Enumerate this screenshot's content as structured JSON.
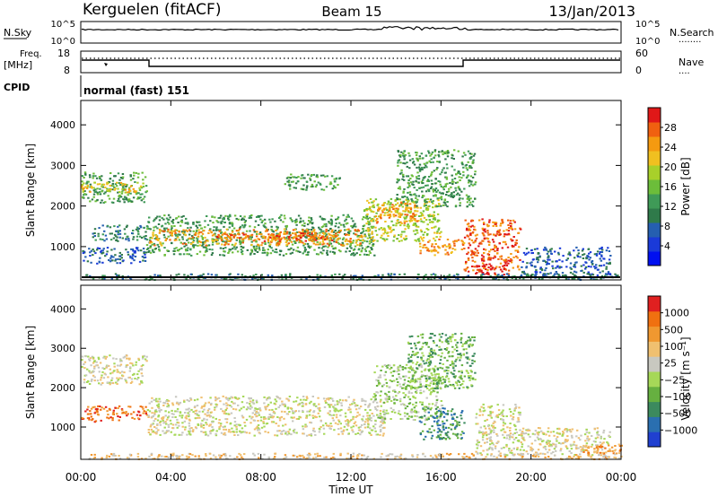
{
  "header": {
    "station": "Kerguelen (fitACF)",
    "beam": "Beam 15",
    "date": "13/Jan/2013"
  },
  "status_panels": {
    "noise": {
      "left_label": "N.Sky",
      "left_ticks": [
        "10^5",
        "10^0"
      ],
      "right_ticks": [
        "10^5",
        "10^0"
      ],
      "right_label": "N.Search",
      "right_dots": "........"
    },
    "freq": {
      "left_label_1": "Freq.",
      "left_label_2": "[MHz]",
      "left_ticks": [
        "18",
        "8"
      ],
      "right_ticks": [
        "60",
        "0"
      ],
      "right_label": "Nave",
      "right_dots": "...."
    },
    "cpid": {
      "label": "CPID",
      "mode": "normal (fast) 151"
    }
  },
  "chart_data": [
    {
      "type": "heatmap",
      "name": "power",
      "ylabel": "Slant Range [km]",
      "ylim": [
        180,
        4600
      ],
      "yticks": [
        "4000",
        "3000",
        "2000",
        "1000"
      ],
      "xlim": [
        0,
        24
      ],
      "colorbar": {
        "label": "Power [dB]",
        "ticks": [
          "28",
          "24",
          "20",
          "16",
          "12",
          "8",
          "4"
        ],
        "colors": [
          "#0010f0",
          "#1a3ad8",
          "#255fb0",
          "#2f7a4a",
          "#3f9a57",
          "#6cbd3a",
          "#a8d02a",
          "#f0c020",
          "#f59a10",
          "#f06010",
          "#e01818"
        ]
      },
      "regions": [
        {
          "t0": 0.0,
          "t1": 2.9,
          "r0": 2100,
          "r1": 2850,
          "level": 4
        },
        {
          "t0": 0.0,
          "t1": 2.9,
          "r0": 2350,
          "r1": 2600,
          "level": 7
        },
        {
          "t0": 0.5,
          "t1": 2.9,
          "r0": 1150,
          "r1": 1550,
          "level": 3
        },
        {
          "t0": 2.9,
          "t1": 13.0,
          "r0": 800,
          "r1": 1800,
          "level": 4
        },
        {
          "t0": 3.0,
          "t1": 12.5,
          "r0": 1050,
          "r1": 1450,
          "level": 8
        },
        {
          "t0": 6.0,
          "t1": 11.5,
          "r0": 1150,
          "r1": 1350,
          "level": 9
        },
        {
          "t0": 12.5,
          "t1": 16.0,
          "r0": 1150,
          "r1": 2200,
          "level": 6
        },
        {
          "t0": 13.0,
          "t1": 15.0,
          "r0": 1600,
          "r1": 2100,
          "level": 8
        },
        {
          "t0": 15.0,
          "t1": 17.0,
          "r0": 800,
          "r1": 1200,
          "level": 8
        },
        {
          "t0": 17.0,
          "t1": 19.5,
          "r0": 400,
          "r1": 1700,
          "level": 9
        },
        {
          "t0": 17.5,
          "t1": 19.0,
          "r0": 300,
          "r1": 600,
          "level": 10
        },
        {
          "t0": 14.0,
          "t1": 17.5,
          "r0": 2000,
          "r1": 3400,
          "level": 4
        },
        {
          "t0": 9.0,
          "t1": 11.5,
          "r0": 2400,
          "r1": 2800,
          "level": 4
        },
        {
          "t0": 19.5,
          "t1": 23.5,
          "r0": 300,
          "r1": 1000,
          "level": 2
        },
        {
          "t0": 0.0,
          "t1": 24.0,
          "r0": 200,
          "r1": 350,
          "level": 3
        },
        {
          "t0": 0.0,
          "t1": 2.9,
          "r0": 600,
          "r1": 1000,
          "level": 2
        }
      ]
    },
    {
      "type": "heatmap",
      "name": "velocity",
      "ylabel": "Slant Range [km]",
      "ylim": [
        180,
        4600
      ],
      "yticks": [
        "4000",
        "3000",
        "2000",
        "1000"
      ],
      "xlim": [
        0,
        24
      ],
      "xticks": [
        "00:00",
        "04:00",
        "08:00",
        "12:00",
        "16:00",
        "20:00",
        "00:00"
      ],
      "xlabel": "Time UT",
      "colorbar": {
        "label": "Velocity [m s⁻¹]",
        "ticks": [
          "1000",
          "500",
          "100",
          "25",
          "−25",
          "−100",
          "−500",
          "−1000"
        ],
        "colors": [
          "#2040d0",
          "#2a6fb0",
          "#3c8a5e",
          "#66b040",
          "#a6d858",
          "#c8c8c0",
          "#f0c070",
          "#f09830",
          "#f07010",
          "#e02020"
        ]
      },
      "regions": [
        {
          "t0": 0.0,
          "t1": 2.9,
          "r0": 2100,
          "r1": 2850,
          "level": 5
        },
        {
          "t0": 0.0,
          "t1": 2.9,
          "r0": 1150,
          "r1": 1550,
          "level": 8
        },
        {
          "t0": 2.9,
          "t1": 13.5,
          "r0": 800,
          "r1": 1800,
          "level": 5
        },
        {
          "t0": 13.0,
          "t1": 16.0,
          "r0": 1200,
          "r1": 2600,
          "level": 4
        },
        {
          "t0": 15.0,
          "t1": 17.0,
          "r0": 700,
          "r1": 1500,
          "level": 2
        },
        {
          "t0": 14.5,
          "t1": 17.5,
          "r0": 2000,
          "r1": 3400,
          "level": 3
        },
        {
          "t0": 17.5,
          "t1": 19.5,
          "r0": 300,
          "r1": 1600,
          "level": 5
        },
        {
          "t0": 19.5,
          "t1": 23.5,
          "r0": 300,
          "r1": 1000,
          "level": 5
        },
        {
          "t0": 22.0,
          "t1": 24.0,
          "r0": 250,
          "r1": 600,
          "level": 7
        },
        {
          "t0": 0.0,
          "t1": 24.0,
          "r0": 200,
          "r1": 350,
          "level": 6
        }
      ]
    }
  ]
}
